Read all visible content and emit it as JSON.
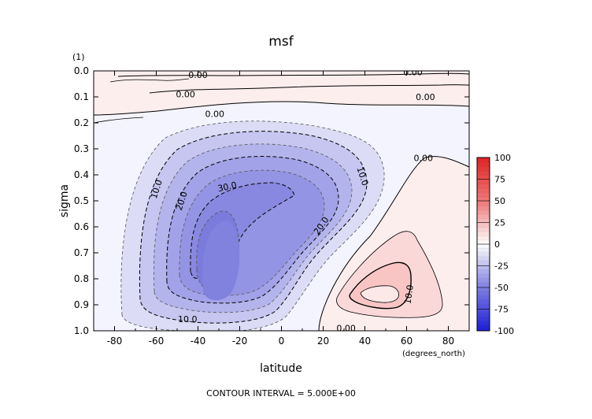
{
  "chart_data": {
    "type": "heatmap",
    "title": "msf",
    "xlabel": "latitude",
    "ylabel": "sigma",
    "x_units_label": "(degrees_north)",
    "y_units_label": "(1)",
    "footer": "CONTOUR INTERVAL = 5.000E+00",
    "xlim": [
      -90,
      90
    ],
    "ylim": [
      0.0,
      1.0
    ],
    "y_inverted": true,
    "x_ticks": [
      -80,
      -60,
      -40,
      -20,
      0,
      20,
      40,
      60,
      80
    ],
    "y_ticks": [
      "0.0",
      "0.1",
      "0.2",
      "0.3",
      "0.4",
      "0.5",
      "0.6",
      "0.7",
      "0.8",
      "0.9",
      "1.0"
    ],
    "contour_interval": 5.0,
    "colorbar": {
      "ticks": [
        "100",
        "75",
        "50",
        "25",
        "0",
        "-25",
        "-50",
        "-75",
        "-100"
      ],
      "range": [
        -100,
        100
      ]
    },
    "features": [
      {
        "name": "southern-cell",
        "sign": "negative",
        "lat": -30,
        "sigma": 0.7,
        "peak": -35
      },
      {
        "name": "northern-cell",
        "sign": "positive",
        "lat": 47,
        "sigma": 0.86,
        "peak": 12
      }
    ],
    "contour_labels": [
      {
        "text": "0.00",
        "lat": -40,
        "sigma": 0.015
      },
      {
        "text": "0.00",
        "lat": 63,
        "sigma": 0.005
      },
      {
        "text": "0.00",
        "lat": -46,
        "sigma": 0.09
      },
      {
        "text": "0.00",
        "lat": 69,
        "sigma": 0.1
      },
      {
        "text": "0.00",
        "lat": -32,
        "sigma": 0.165
      },
      {
        "text": "0.00",
        "lat": 68,
        "sigma": 0.335
      },
      {
        "text": "0.00",
        "lat": 31,
        "sigma": 0.99
      },
      {
        "text": "10.0",
        "lat": -60,
        "sigma": 0.455,
        "angle": -72
      },
      {
        "text": "20.0",
        "lat": -48,
        "sigma": 0.5,
        "angle": -72
      },
      {
        "text": "30.0",
        "lat": -26,
        "sigma": 0.445,
        "angle": -12
      },
      {
        "text": "10.0",
        "lat": 39,
        "sigma": 0.405,
        "angle": 72
      },
      {
        "text": "20.0",
        "lat": 19,
        "sigma": 0.595,
        "angle": -55
      },
      {
        "text": "10.0",
        "lat": -45,
        "sigma": 0.955
      },
      {
        "text": "10.0",
        "lat": 61,
        "sigma": 0.86,
        "angle": -82
      }
    ]
  }
}
